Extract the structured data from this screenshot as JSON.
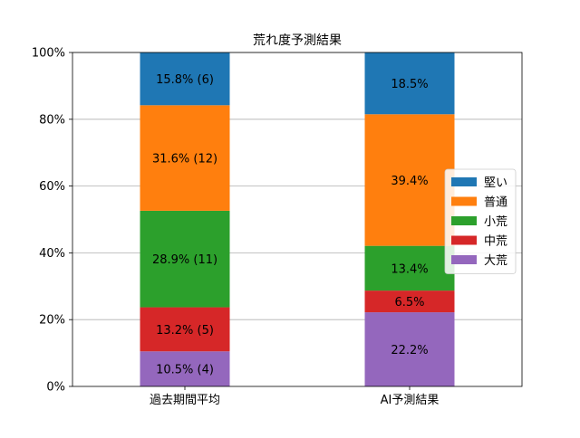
{
  "chart_data": {
    "type": "bar",
    "stacked": true,
    "title": "荒れ度予測結果",
    "xlabel": "",
    "ylabel": "",
    "ylim": [
      0,
      100
    ],
    "yticks": [
      0,
      20,
      40,
      60,
      80,
      100
    ],
    "ytick_labels": [
      "0%",
      "20%",
      "40%",
      "60%",
      "80%",
      "100%"
    ],
    "grid": "horizontal",
    "legend_position": "center-right",
    "categories": [
      "過去期間平均",
      "AI予測結果"
    ],
    "series": [
      {
        "name": "大荒",
        "color": "#9467bd",
        "values": [
          10.5,
          22.2
        ],
        "labels": [
          "10.5% (4)",
          "22.2%"
        ]
      },
      {
        "name": "中荒",
        "color": "#d62728",
        "values": [
          13.2,
          6.5
        ],
        "labels": [
          "13.2% (5)",
          "6.5%"
        ]
      },
      {
        "name": "小荒",
        "color": "#2ca02c",
        "values": [
          28.9,
          13.4
        ],
        "labels": [
          "28.9% (11)",
          "13.4%"
        ]
      },
      {
        "name": "普通",
        "color": "#ff7f0e",
        "values": [
          31.6,
          39.4
        ],
        "labels": [
          "31.6% (12)",
          "39.4%"
        ]
      },
      {
        "name": "堅い",
        "color": "#1f77b4",
        "values": [
          15.8,
          18.5
        ],
        "labels": [
          "15.8% (6)",
          "18.5%"
        ]
      }
    ],
    "legend_order": [
      "堅い",
      "普通",
      "小荒",
      "中荒",
      "大荒"
    ]
  }
}
